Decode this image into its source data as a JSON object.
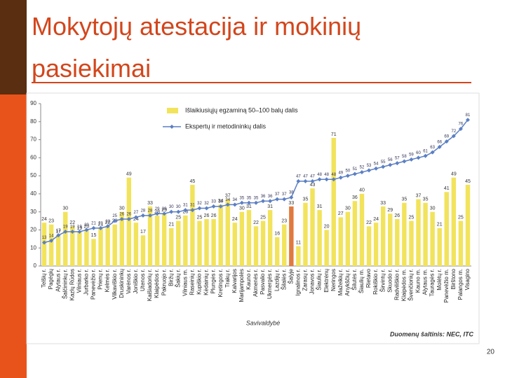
{
  "slide_title": "Mokytojų atestacija ir mokinių pasiekimai",
  "page_number": "20",
  "chart_data": {
    "type": "bar",
    "categories": [
      "Telšių r.",
      "Pagėgių",
      "Alytaus r.",
      "Šalčininkų r.",
      "Kazlų Rūdos",
      "Vilniaus r.",
      "Jurbarko r.",
      "Panevėžio r.",
      "Prienų r.",
      "Kelmės r.",
      "Vilkaviškio r.",
      "Druskininkų",
      "Varėnos r.",
      "Joniškio r.",
      "Utenos r.",
      "Kaišiadorių r.",
      "Klaipėdos r.",
      "Pakruojo r.",
      "Biržų r.",
      "Šakių r.",
      "Vilniaus m.",
      "Raseinių r.",
      "Kupiškio r.",
      "Kėdainių r.",
      "Plungės r.",
      "Kretingos r.",
      "Trakų r.",
      "Kalvarijos",
      "Marijampolės",
      "Kauno r.",
      "Akmenės r.",
      "Pasvalio r.",
      "Ukmergės r.",
      "Lazdijų r.",
      "Šilalės r.",
      "Šalyje",
      "Ignalinos r.",
      "Zarasų r.",
      "Jonavos r.",
      "Šiaulių r.",
      "Elektrėnų",
      "Neringos",
      "Mažeikių r.",
      "Anykščių r.",
      "Šilutės r.",
      "Šiaulių m.",
      "Rietavo",
      "Rokiškio r.",
      "Širvintų r.",
      "Skuodo r.",
      "Radviliškio r.",
      "Klaipėdos m.",
      "Švenčionių r.",
      "Kauno m.",
      "Alytaus m.",
      "Tauragės r.",
      "Molėtų r.",
      "Panevėžio m.",
      "Birštono",
      "Palangos m.",
      "Visagino"
    ],
    "series": [
      {
        "name": "Išlaikiusiųjų egzaminą 50–100 balų dalis",
        "type": "bar",
        "color": "#f2e35c",
        "colors": [
          "#f2e35c",
          "#f2e35c",
          "#f2e35c",
          "#f2e35c",
          "#f2e35c",
          "#f2e35c",
          "#f2e35c",
          "#f2e35c",
          "#f2e35c",
          "#f2e35c",
          "#f2e35c",
          "#f2e35c",
          "#f2e35c",
          "#f2e35c",
          "#f2e35c",
          "#f2e35c",
          "#f2e35c",
          "#f2e35c",
          "#f2e35c",
          "#f2e35c",
          "#f2e35c",
          "#f2e35c",
          "#f2e35c",
          "#f2e35c",
          "#f2e35c",
          "#f2e35c",
          "#f2e35c",
          "#f2e35c",
          "#f2e35c",
          "#f2e35c",
          "#f2e35c",
          "#f2e35c",
          "#f2e35c",
          "#f2e35c",
          "#f2e35c",
          "#e07a3e",
          "#f2e35c",
          "#f2e35c",
          "#f2e35c",
          "#f2e35c",
          "#f2e35c",
          "#f2e35c",
          "#f2e35c",
          "#f2e35c",
          "#f2e35c",
          "#f2e35c",
          "#f2e35c",
          "#f2e35c",
          "#f2e35c",
          "#f2e35c",
          "#f2e35c",
          "#f2e35c",
          "#f2e35c",
          "#f2e35c",
          "#f2e35c",
          "#f2e35c",
          "#f2e35c",
          "#f2e35c",
          "#f2e35c",
          "#f2e35c",
          "#f2e35c"
        ],
        "values": [
          24,
          23,
          17,
          30,
          22,
          19,
          20,
          15,
          21,
          22,
          23,
          30,
          49,
          24,
          17,
          33,
          28,
          29,
          21,
          25,
          28,
          45,
          25,
          26,
          26,
          34,
          37,
          24,
          30,
          31,
          22,
          25,
          31,
          16,
          23,
          33,
          11,
          35,
          43,
          31,
          20,
          71,
          27,
          30,
          36,
          40,
          22,
          24,
          33,
          29,
          26,
          35,
          25,
          37,
          35,
          30,
          21,
          41,
          49,
          25,
          45
        ]
      },
      {
        "name": "Ekspertų ir metodininkų dalis",
        "type": "line",
        "color": "#5b7fc4",
        "values": [
          13,
          14,
          17,
          19,
          19,
          19,
          20,
          21,
          21,
          22,
          25,
          26,
          26,
          27,
          28,
          28,
          29,
          29,
          30,
          30,
          31,
          31,
          32,
          32,
          33,
          33,
          34,
          34,
          35,
          35,
          35,
          36,
          36,
          37,
          37,
          38,
          47,
          47,
          47,
          48,
          48,
          48,
          49,
          50,
          51,
          52,
          53,
          54,
          55,
          56,
          57,
          58,
          59,
          60,
          61,
          63,
          66,
          69,
          72,
          76,
          81
        ]
      }
    ],
    "ylim": [
      0,
      90
    ],
    "yticks": [
      0,
      10,
      20,
      30,
      40,
      50,
      60,
      70,
      80,
      90
    ],
    "x_label": "Savivaldybė",
    "source": "Duomenų šaltinis: NEC, ITC"
  }
}
